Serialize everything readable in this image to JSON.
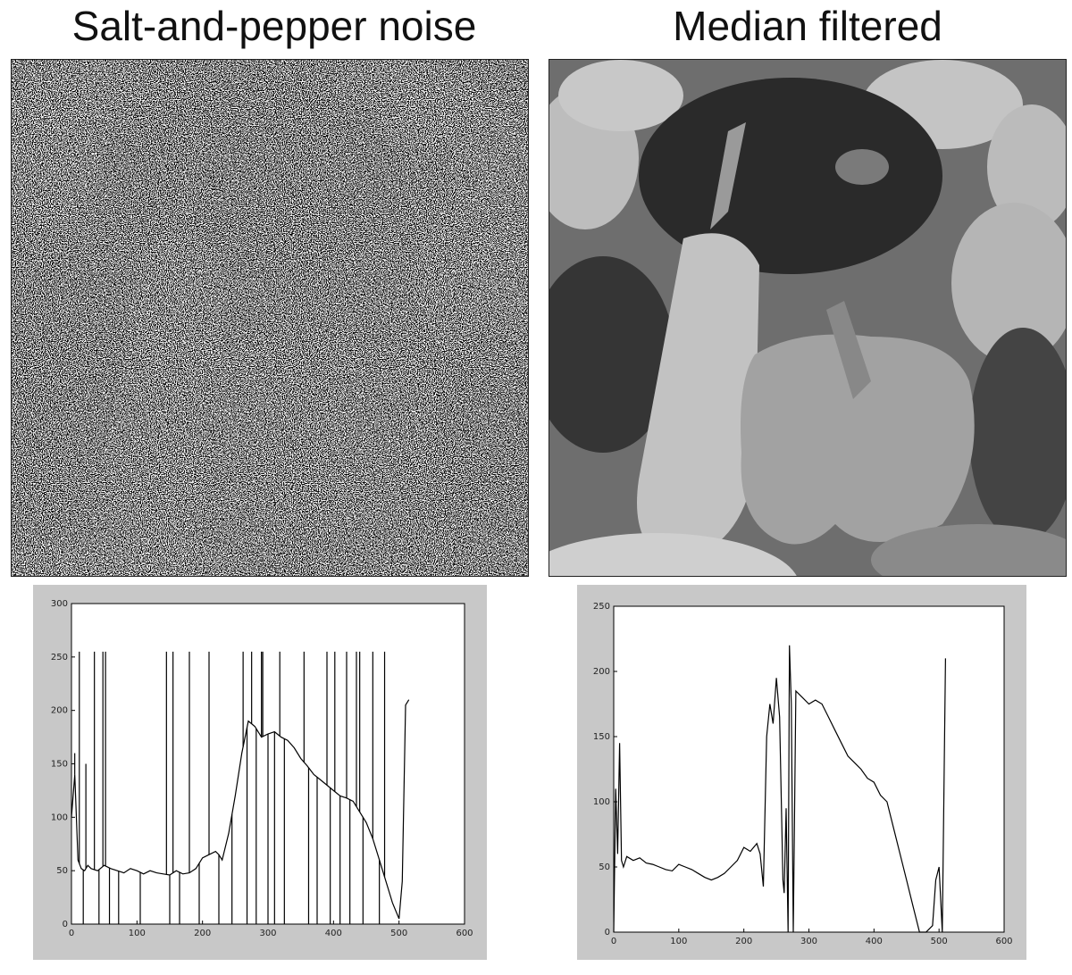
{
  "titles": {
    "left": "Salt-and-pepper noise",
    "right": "Median filtered"
  },
  "chart_data": [
    {
      "type": "line",
      "title": "",
      "xlabel": "",
      "ylabel": "",
      "xlim": [
        0,
        600
      ],
      "ylim": [
        0,
        300
      ],
      "xticks": [
        "0",
        "100",
        "200",
        "300",
        "400",
        "500",
        "600"
      ],
      "yticks": [
        "0",
        "50",
        "100",
        "150",
        "200",
        "250",
        "300"
      ],
      "grid": false,
      "series": [
        {
          "x": [
            0,
            5,
            10,
            15,
            20,
            25,
            30,
            40,
            50,
            60,
            70,
            80,
            90,
            100,
            110,
            120,
            130,
            140,
            150,
            160,
            170,
            180,
            190,
            200,
            210,
            220,
            225,
            230,
            240,
            250,
            260,
            270,
            280,
            290,
            300,
            310,
            320,
            330,
            340,
            350,
            360,
            370,
            380,
            390,
            400,
            410,
            420,
            430,
            440,
            450,
            460,
            470,
            480,
            490,
            500,
            505,
            510,
            515
          ],
          "y": [
            100,
            140,
            60,
            52,
            50,
            55,
            52,
            50,
            55,
            52,
            50,
            48,
            52,
            50,
            47,
            50,
            48,
            47,
            46,
            50,
            47,
            48,
            52,
            62,
            65,
            68,
            65,
            60,
            85,
            120,
            160,
            190,
            185,
            175,
            178,
            180,
            175,
            172,
            165,
            155,
            148,
            140,
            135,
            130,
            125,
            120,
            118,
            115,
            105,
            95,
            80,
            60,
            40,
            20,
            5,
            40,
            205,
            210
          ],
          "spikes": [
            {
              "x": 5,
              "y": 160
            },
            {
              "x": 12,
              "y": 255
            },
            {
              "x": 18,
              "y": 0
            },
            {
              "x": 22,
              "y": 150
            },
            {
              "x": 35,
              "y": 255
            },
            {
              "x": 42,
              "y": 0
            },
            {
              "x": 48,
              "y": 255
            },
            {
              "x": 52,
              "y": 255
            },
            {
              "x": 58,
              "y": 0
            },
            {
              "x": 72,
              "y": 0
            },
            {
              "x": 105,
              "y": 0
            },
            {
              "x": 145,
              "y": 255
            },
            {
              "x": 150,
              "y": 0
            },
            {
              "x": 155,
              "y": 255
            },
            {
              "x": 165,
              "y": 0
            },
            {
              "x": 180,
              "y": 255
            },
            {
              "x": 195,
              "y": 0
            },
            {
              "x": 210,
              "y": 255
            },
            {
              "x": 225,
              "y": 0
            },
            {
              "x": 245,
              "y": 0
            },
            {
              "x": 262,
              "y": 255
            },
            {
              "x": 268,
              "y": 0
            },
            {
              "x": 275,
              "y": 255
            },
            {
              "x": 282,
              "y": 0
            },
            {
              "x": 290,
              "y": 255
            },
            {
              "x": 292,
              "y": 255
            },
            {
              "x": 300,
              "y": 0
            },
            {
              "x": 310,
              "y": 0
            },
            {
              "x": 318,
              "y": 255
            },
            {
              "x": 325,
              "y": 0
            },
            {
              "x": 355,
              "y": 255
            },
            {
              "x": 362,
              "y": 0
            },
            {
              "x": 375,
              "y": 0
            },
            {
              "x": 390,
              "y": 255
            },
            {
              "x": 395,
              "y": 0
            },
            {
              "x": 402,
              "y": 255
            },
            {
              "x": 410,
              "y": 0
            },
            {
              "x": 420,
              "y": 255
            },
            {
              "x": 425,
              "y": 0
            },
            {
              "x": 435,
              "y": 255
            },
            {
              "x": 440,
              "y": 255
            },
            {
              "x": 445,
              "y": 0
            },
            {
              "x": 460,
              "y": 255
            },
            {
              "x": 470,
              "y": 0
            },
            {
              "x": 478,
              "y": 255
            }
          ]
        }
      ]
    },
    {
      "type": "line",
      "title": "",
      "xlabel": "",
      "ylabel": "",
      "xlim": [
        0,
        600
      ],
      "ylim": [
        0,
        250
      ],
      "xticks": [
        "0",
        "100",
        "200",
        "300",
        "400",
        "500",
        "600"
      ],
      "yticks": [
        "0",
        "50",
        "100",
        "150",
        "200",
        "250"
      ],
      "grid": false,
      "series": [
        {
          "x": [
            0,
            3,
            6,
            9,
            12,
            15,
            20,
            30,
            40,
            50,
            60,
            70,
            80,
            90,
            100,
            110,
            120,
            130,
            140,
            150,
            160,
            170,
            180,
            190,
            200,
            210,
            220,
            225,
            230,
            235,
            240,
            245,
            250,
            255,
            260,
            262,
            265,
            268,
            270,
            273,
            276,
            280,
            290,
            300,
            310,
            320,
            330,
            340,
            350,
            360,
            370,
            380,
            390,
            400,
            410,
            420,
            430,
            440,
            450,
            460,
            470,
            480,
            490,
            495,
            500,
            505,
            510
          ],
          "y": [
            0,
            110,
            60,
            145,
            55,
            50,
            58,
            55,
            57,
            53,
            52,
            50,
            48,
            47,
            52,
            50,
            48,
            45,
            42,
            40,
            42,
            45,
            50,
            55,
            65,
            62,
            68,
            60,
            35,
            150,
            175,
            160,
            195,
            165,
            40,
            30,
            95,
            0,
            220,
            175,
            0,
            185,
            180,
            175,
            178,
            175,
            165,
            155,
            145,
            135,
            130,
            125,
            118,
            115,
            105,
            100,
            80,
            60,
            40,
            20,
            0,
            0,
            5,
            40,
            50,
            0,
            210
          ]
        }
      ]
    }
  ]
}
